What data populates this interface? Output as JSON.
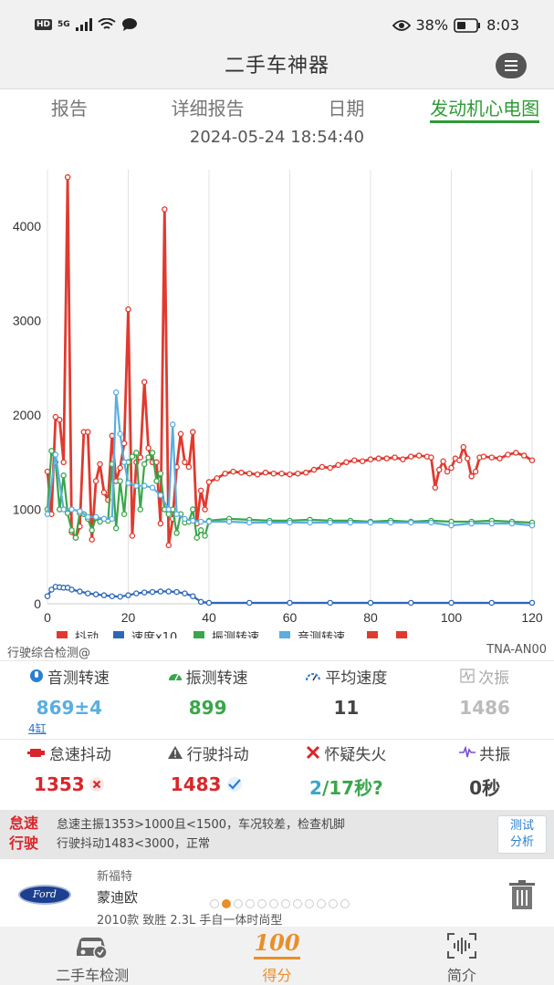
{
  "status": {
    "hd": "HD",
    "network": "5G",
    "battery": "38%",
    "time": "8:03"
  },
  "header": {
    "title": "二手车神器"
  },
  "tabs": [
    {
      "label": "报告"
    },
    {
      "label": "详细报告"
    },
    {
      "label": "日期"
    },
    {
      "label": "发动机心电图",
      "active": true
    }
  ],
  "datetime": "2024-05-24 18:54:40",
  "chart_data": {
    "type": "line",
    "xlim": [
      0,
      120
    ],
    "ylim": [
      0,
      4600
    ],
    "xticks": [
      0,
      20,
      40,
      60,
      80,
      100,
      120
    ],
    "yticks": [
      0,
      1000,
      2000,
      3000,
      4000
    ],
    "grid": "vertical",
    "legend_position": "bottom",
    "series": [
      {
        "name": "抖动",
        "color": "#e03a2f",
        "x": [
          0,
          1,
          2,
          3,
          4,
          5,
          6,
          7,
          8,
          9,
          10,
          11,
          12,
          13,
          14,
          15,
          16,
          17,
          18,
          19,
          20,
          21,
          22,
          23,
          24,
          25,
          26,
          27,
          28,
          29,
          30,
          31,
          32,
          33,
          34,
          35,
          36,
          37,
          38,
          39,
          40,
          42,
          44,
          46,
          48,
          50,
          52,
          54,
          56,
          58,
          60,
          62,
          64,
          66,
          68,
          70,
          72,
          74,
          76,
          78,
          80,
          82,
          84,
          86,
          88,
          90,
          92,
          94,
          95,
          96,
          97,
          98,
          99,
          100,
          101,
          102,
          103,
          104,
          105,
          106,
          107,
          108,
          110,
          112,
          114,
          116,
          118,
          120
        ],
        "values": [
          1400,
          950,
          1980,
          1950,
          1500,
          4520,
          760,
          700,
          820,
          1820,
          1820,
          680,
          1300,
          1480,
          1180,
          1100,
          1780,
          1300,
          1440,
          1700,
          3120,
          720,
          1500,
          1550,
          2350,
          1650,
          1500,
          1500,
          850,
          4180,
          620,
          900,
          1450,
          1800,
          1500,
          1450,
          1820,
          850,
          1200,
          1000,
          1290,
          1330,
          1380,
          1400,
          1390,
          1380,
          1370,
          1390,
          1380,
          1380,
          1370,
          1380,
          1390,
          1420,
          1450,
          1440,
          1470,
          1500,
          1520,
          1510,
          1530,
          1540,
          1540,
          1550,
          1530,
          1560,
          1570,
          1560,
          1550,
          1230,
          1420,
          1510,
          1400,
          1440,
          1540,
          1520,
          1660,
          1540,
          1350,
          1400,
          1550,
          1560,
          1550,
          1540,
          1580,
          1600,
          1570,
          1520
        ]
      },
      {
        "name": "速度x10",
        "color": "#2d67b8",
        "x": [
          0,
          1,
          2,
          3,
          4,
          5,
          6,
          8,
          10,
          12,
          14,
          16,
          18,
          20,
          22,
          24,
          26,
          28,
          30,
          32,
          34,
          36,
          38,
          40,
          50,
          60,
          70,
          80,
          90,
          100,
          110,
          120
        ],
        "values": [
          80,
          150,
          180,
          175,
          170,
          170,
          150,
          130,
          110,
          100,
          90,
          80,
          75,
          90,
          110,
          120,
          125,
          130,
          130,
          125,
          110,
          80,
          20,
          10,
          10,
          10,
          10,
          10,
          10,
          10,
          10,
          10
        ]
      },
      {
        "name": "振测转速",
        "color": "#3aa64b",
        "x": [
          0,
          1,
          2,
          3,
          4,
          5,
          6,
          7,
          8,
          9,
          10,
          11,
          12,
          13,
          14,
          15,
          16,
          17,
          18,
          19,
          20,
          21,
          22,
          23,
          24,
          25,
          26,
          27,
          28,
          29,
          30,
          31,
          32,
          33,
          34,
          35,
          36,
          37,
          38,
          39,
          40,
          45,
          50,
          55,
          60,
          65,
          70,
          75,
          80,
          85,
          90,
          95,
          100,
          105,
          110,
          115,
          120
        ],
        "values": [
          1000,
          1620,
          1500,
          1000,
          1360,
          960,
          780,
          700,
          960,
          950,
          900,
          780,
          910,
          870,
          900,
          880,
          1480,
          800,
          1300,
          950,
          1500,
          1560,
          1600,
          1000,
          1480,
          1550,
          1600,
          1300,
          1380,
          1000,
          950,
          1000,
          750,
          950,
          860,
          870,
          1000,
          700,
          780,
          720,
          880,
          900,
          890,
          880,
          880,
          890,
          880,
          880,
          870,
          880,
          870,
          880,
          870,
          870,
          880,
          870,
          860
        ]
      },
      {
        "name": "音测转速",
        "color": "#5aaee0",
        "x": [
          0,
          2,
          4,
          6,
          8,
          10,
          12,
          14,
          16,
          17,
          18,
          19,
          20,
          22,
          24,
          26,
          28,
          30,
          31,
          32,
          34,
          36,
          38,
          40,
          45,
          50,
          55,
          60,
          65,
          70,
          75,
          80,
          85,
          90,
          95,
          100,
          105,
          110,
          115,
          120
        ],
        "values": [
          950,
          1580,
          1000,
          1000,
          980,
          920,
          920,
          900,
          900,
          2240,
          1800,
          1500,
          1280,
          1250,
          1250,
          1230,
          1150,
          1000,
          1900,
          950,
          900,
          880,
          870,
          870,
          870,
          860,
          860,
          860,
          860,
          860,
          860,
          860,
          860,
          860,
          860,
          830,
          850,
          850,
          850,
          830
        ]
      }
    ],
    "legend": [
      "抖动",
      "速度x10",
      "振测转速",
      "音测转速",
      "",
      ""
    ],
    "legend_colors": [
      "#e03a2f",
      "#2d67b8",
      "#3aa64b",
      "#5aaee0",
      "#e03a2f",
      "#e03a2f"
    ]
  },
  "chart_footer": {
    "left": "行驶综合检测@",
    "right": "TNA-AN00"
  },
  "stats_row1": [
    {
      "label": "音测转速",
      "value": "869±4",
      "sub": "4缸",
      "color": "#5aaee0"
    },
    {
      "label": "振测转速",
      "value": "899",
      "color": "#3aa64b"
    },
    {
      "label": "平均速度",
      "value": "11",
      "color": "#444444"
    },
    {
      "label": "次振",
      "value": "1486",
      "color": "#bbbbbb",
      "dim": true
    }
  ],
  "stats_row2": [
    {
      "label": "怠速抖动",
      "value": "1353",
      "color": "#d9262b"
    },
    {
      "label": "行驶抖动",
      "value": "1483",
      "color": "#d9262b"
    },
    {
      "label": "怀疑失火",
      "value_a": "2",
      "value_b": "/17秒?",
      "color_a": "#3aa6c9",
      "color_b": "#3aa64b"
    },
    {
      "label": "共振",
      "value": "0秒",
      "color": "#444444"
    }
  ],
  "advice": {
    "tag1": "怠速",
    "tag2": "行驶",
    "line1": "怠速主振1353>1000且<1500，车况较差，检查机脚",
    "line2": "行驶抖动1483<3000，正常",
    "button_line1": "测试",
    "button_line2": "分析"
  },
  "car": {
    "logo_text": "Ford",
    "brand": "新福特",
    "model": "蒙迪欧",
    "desc": "2010款 致胜 2.3L 手自一体时尚型"
  },
  "bottom_nav": [
    {
      "label": "二手车检测"
    },
    {
      "label": "得分",
      "active": true,
      "icon_text": "100"
    },
    {
      "label": "简介"
    }
  ]
}
